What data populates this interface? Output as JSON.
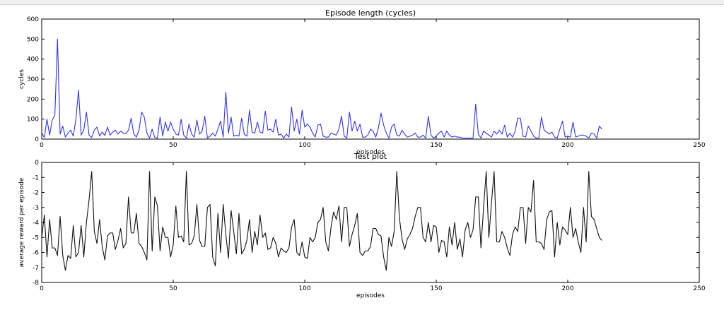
{
  "chart_data": [
    {
      "type": "line",
      "title": "Episode length (cycles)",
      "xlabel": "episodes",
      "ylabel": "cycles",
      "xlim": [
        0,
        250
      ],
      "ylim": [
        0,
        600
      ],
      "xticks": [
        0,
        50,
        100,
        150,
        200,
        250
      ],
      "yticks": [
        0,
        100,
        200,
        300,
        400,
        500,
        600
      ],
      "grid": false,
      "series": [
        {
          "color": "#3333ee",
          "values": [
            30,
            8,
            100,
            20,
            95,
            120,
            500,
            25,
            65,
            10,
            30,
            45,
            15,
            100,
            245,
            20,
            45,
            135,
            20,
            8,
            45,
            60,
            15,
            35,
            18,
            60,
            20,
            35,
            45,
            25,
            40,
            30,
            28,
            45,
            105,
            25,
            10,
            45,
            135,
            110,
            30,
            5,
            50,
            8,
            5,
            110,
            15,
            85,
            40,
            85,
            50,
            25,
            20,
            100,
            20,
            5,
            75,
            25,
            10,
            95,
            25,
            40,
            115,
            5,
            15,
            30,
            15,
            50,
            90,
            10,
            235,
            30,
            110,
            15,
            20,
            15,
            105,
            25,
            15,
            145,
            35,
            30,
            85,
            35,
            30,
            140,
            45,
            50,
            35,
            100,
            20,
            25,
            5,
            25,
            10,
            160,
            40,
            100,
            25,
            145,
            60,
            75,
            60,
            30,
            10,
            70,
            75,
            15,
            10,
            10,
            30,
            25,
            20,
            50,
            115,
            15,
            5,
            135,
            40,
            90,
            40,
            75,
            10,
            10,
            20,
            50,
            40,
            10,
            55,
            130,
            70,
            30,
            5,
            60,
            75,
            20,
            15,
            45,
            25,
            10,
            15,
            20,
            30,
            10,
            10,
            20,
            5,
            115,
            20,
            5,
            15,
            30,
            40,
            10,
            40,
            20,
            10,
            15,
            10,
            10,
            5,
            5,
            5,
            5,
            5,
            175,
            25,
            5,
            40,
            30,
            20,
            10,
            40,
            25,
            45,
            25,
            70,
            10,
            30,
            10,
            40,
            105,
            105,
            15,
            10,
            65,
            40,
            15,
            5,
            5,
            110,
            45,
            35,
            25,
            35,
            10,
            5,
            50,
            90,
            10,
            15,
            10,
            85,
            10,
            15,
            20,
            20,
            15,
            5,
            30,
            25,
            5,
            65,
            50
          ],
          "x_start": 0
        }
      ]
    },
    {
      "type": "line",
      "title": "Test plot",
      "xlabel": "episodes",
      "ylabel": "average reward per episode",
      "xlim": [
        0,
        250
      ],
      "ylim": [
        -8,
        0
      ],
      "xticks": [
        0,
        50,
        100,
        150,
        200,
        250
      ],
      "yticks": [
        0,
        -1,
        -2,
        -3,
        -4,
        -5,
        -6,
        -7,
        -8
      ],
      "grid": false,
      "series": [
        {
          "color": "#111111",
          "values": [
            -5.0,
            -3.5,
            -6.3,
            -3.8,
            -5.7,
            -5.7,
            -6.2,
            -3.6,
            -6.2,
            -7.2,
            -6.2,
            -6.4,
            -4.2,
            -6.3,
            -6.0,
            -4.2,
            -6.3,
            -4.0,
            -2.5,
            -0.6,
            -4.6,
            -5.4,
            -3.8,
            -5.6,
            -6.5,
            -4.9,
            -4.7,
            -4.7,
            -5.8,
            -5.2,
            -4.4,
            -5.7,
            -5.4,
            -2.3,
            -4.7,
            -4.7,
            -3.4,
            -5.4,
            -5.6,
            -6.0,
            -6.5,
            -0.6,
            -5.9,
            -2.3,
            -2.9,
            -5.9,
            -4.3,
            -5.0,
            -5.0,
            -6.3,
            -5.5,
            -2.9,
            -5.0,
            -4.9,
            -5.3,
            -0.6,
            -5.5,
            -5.4,
            -4.9,
            -2.8,
            -5.2,
            -5.6,
            -5.6,
            -3.0,
            -2.8,
            -6.3,
            -6.9,
            -3.4,
            -6.0,
            -2.8,
            -4.8,
            -6.4,
            -3.2,
            -4.6,
            -6.1,
            -3.4,
            -6.1,
            -5.8,
            -5.2,
            -3.8,
            -6.0,
            -4.6,
            -5.5,
            -3.5,
            -5.0,
            -4.7,
            -5.8,
            -5.7,
            -5.0,
            -5.4,
            -6.3,
            -5.7,
            -5.9,
            -6.0,
            -5.7,
            -4.3,
            -3.8,
            -6.0,
            -6.2,
            -5.3,
            -6.3,
            -6.4,
            -5.0,
            -5.3,
            -5.0,
            -4.0,
            -3.8,
            -3.0,
            -5.3,
            -5.9,
            -4.3,
            -3.3,
            -3.8,
            -2.9,
            -5.3,
            -3.0,
            -3.0,
            -5.6,
            -4.8,
            -4.2,
            -3.4,
            -6.0,
            -6.2,
            -5.9,
            -5.9,
            -5.6,
            -4.4,
            -4.4,
            -4.8,
            -4.9,
            -6.3,
            -7.2,
            -5.0,
            -5.6,
            -4.6,
            -0.6,
            -3.7,
            -5.1,
            -5.8,
            -5.1,
            -4.8,
            -4.4,
            -3.6,
            -3.0,
            -3.0,
            -5.0,
            -5.3,
            -4.0,
            -5.3,
            -4.2,
            -4.3,
            -6.0,
            -5.2,
            -5.3,
            -6.3,
            -4.3,
            -5.5,
            -4.0,
            -5.8,
            -5.1,
            -6.3,
            -4.5,
            -4.0,
            -5.0,
            -4.5,
            -2.3,
            -2.3,
            -5.7,
            -3.0,
            -0.6,
            -5.0,
            -2.7,
            -0.6,
            -5.3,
            -5.3,
            -4.6,
            -5.0,
            -5.7,
            -6.2,
            -4.8,
            -4.3,
            -4.6,
            -3.0,
            -3.0,
            -5.4,
            -3.0,
            -3.3,
            -1.2,
            -5.3,
            -5.3,
            -5.4,
            -5.8,
            -3.8,
            -3.3,
            -3.2,
            -6.3,
            -4.0,
            -5.5,
            -4.3,
            -4.5,
            -4.8,
            -3.0,
            -5.0,
            -4.4,
            -5.3,
            -6.0,
            -3.0,
            -5.3,
            -0.6,
            -3.6,
            -3.8,
            -4.4,
            -5.0,
            -5.2
          ],
          "x_start": 0
        }
      ]
    }
  ]
}
